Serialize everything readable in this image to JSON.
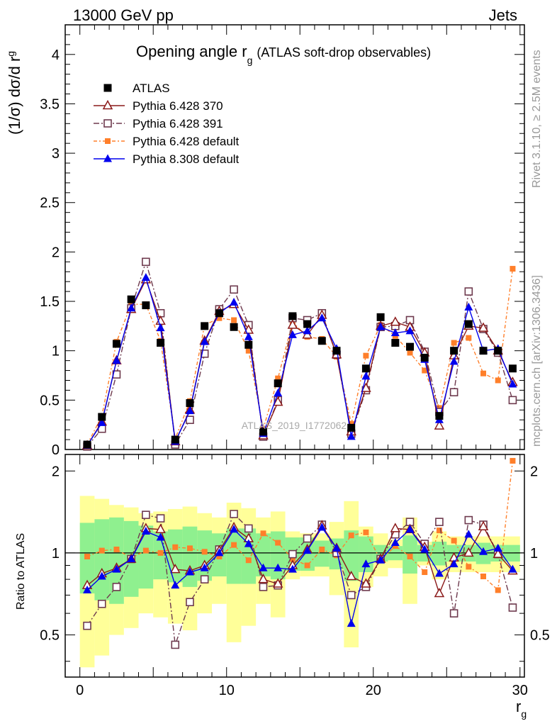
{
  "header": {
    "energy": "13000 GeV pp",
    "process": "Jets"
  },
  "side_labels": {
    "rivet": "Rivet 3.1.10, ≥ 2.5M events",
    "mcplots": "mcplots.cern.ch [arXiv:1306.3436]"
  },
  "watermark": "ATLAS_2019_I1772062",
  "colors": {
    "atlas": "#000000",
    "p370": "#8b1a1a",
    "p391": "#6e3a4e",
    "p6def": "#ff7f2a",
    "p8def": "#0000ee",
    "band_green": "#8ff08f",
    "band_yellow": "#ffff99"
  },
  "chart_data": [
    {
      "type": "line",
      "title": "Opening angle r",
      "title_sub": "g",
      "title_suffix": "(ATLAS soft-drop observables)",
      "ylabel": "(1/σ) dσ/d r",
      "ylabel_sub": "g",
      "ylim": [
        0,
        4.3
      ],
      "xlim": [
        -1,
        30.3
      ],
      "yticks": [
        0,
        0.5,
        1,
        1.5,
        2,
        2.5,
        3,
        3.5,
        4
      ],
      "ytick_labels": [
        "0",
        "0.5",
        "1",
        "1.5",
        "2",
        "2.5",
        "3",
        "3.5",
        "4"
      ],
      "legend_position": "top-left",
      "x": [
        0.5,
        1.5,
        2.5,
        3.5,
        4.5,
        5.5,
        6.5,
        7.5,
        8.5,
        9.5,
        10.5,
        11.5,
        12.5,
        13.5,
        14.5,
        15.5,
        16.5,
        17.5,
        18.5,
        19.5,
        20.5,
        21.5,
        22.5,
        23.5,
        24.5,
        25.5,
        26.5,
        27.5,
        28.5,
        29.5
      ],
      "series": [
        {
          "name": "ATLAS",
          "key": "atlas",
          "values": [
            0.05,
            0.33,
            1.07,
            1.52,
            1.46,
            1.08,
            0.1,
            0.47,
            1.25,
            1.38,
            1.24,
            1.06,
            0.18,
            0.67,
            1.35,
            1.27,
            1.1,
            1.0,
            0.22,
            0.82,
            1.34,
            1.08,
            1.04,
            0.93,
            0.34,
            1.0,
            1.27,
            1.0,
            1.0,
            0.82
          ]
        },
        {
          "name": "Pythia 6.428 370",
          "key": "p370",
          "values": [
            0.04,
            0.28,
            0.9,
            1.42,
            1.72,
            1.3,
            0.08,
            0.4,
            1.1,
            1.4,
            1.47,
            1.21,
            0.14,
            0.48,
            1.26,
            1.16,
            1.36,
            0.96,
            0.18,
            0.62,
            1.25,
            1.29,
            1.24,
            0.98,
            0.24,
            0.95,
            1.25,
            1.23,
            1.0,
            0.68
          ]
        },
        {
          "name": "Pythia 6.428 391",
          "key": "p391",
          "values": [
            0.03,
            0.21,
            0.76,
            1.43,
            1.9,
            1.38,
            0.05,
            0.3,
            0.97,
            1.42,
            1.62,
            1.26,
            0.13,
            0.5,
            1.33,
            1.31,
            1.38,
            0.96,
            0.16,
            0.6,
            1.24,
            1.25,
            1.31,
            0.99,
            0.38,
            0.58,
            1.6,
            1.22,
            0.98,
            0.5
          ]
        },
        {
          "name": "Pythia 6.428 default",
          "key": "p6def",
          "values": [
            0.05,
            0.34,
            1.09,
            1.47,
            1.47,
            1.1,
            0.11,
            0.49,
            1.26,
            1.33,
            1.31,
            1.0,
            0.21,
            0.72,
            1.29,
            1.14,
            1.12,
            0.94,
            0.26,
            0.95,
            1.26,
            1.15,
            0.98,
            0.8,
            0.42,
            1.08,
            1.13,
            0.77,
            0.7,
            1.83
          ]
        },
        {
          "name": "Pythia 8.308 default",
          "key": "p8def",
          "values": [
            0.04,
            0.27,
            0.9,
            1.43,
            1.74,
            1.23,
            0.08,
            0.39,
            1.09,
            1.38,
            1.49,
            1.14,
            0.16,
            0.57,
            1.16,
            1.2,
            1.33,
            1.02,
            0.13,
            0.74,
            1.24,
            1.18,
            1.2,
            0.91,
            0.3,
            0.89,
            1.44,
            1.0,
            1.02,
            0.66
          ]
        }
      ]
    },
    {
      "type": "line",
      "ylabel": "Ratio to ATLAS",
      "xlabel": "r",
      "xlabel_sub": "g",
      "ylim": [
        0.35,
        2.3
      ],
      "xticks": [
        0,
        10,
        20,
        30
      ],
      "xtick_labels": [
        "0",
        "10",
        "20",
        "30"
      ],
      "yticks": [
        0.5,
        1,
        2
      ],
      "ytick_labels": [
        "0.5",
        "1",
        "2"
      ],
      "band_green_halfwidth": [
        0.29,
        0.33,
        0.35,
        0.31,
        0.26,
        0.2,
        0.22,
        0.25,
        0.21,
        0.18,
        0.23,
        0.23,
        0.18,
        0.2,
        0.14,
        0.14,
        0.11,
        0.13,
        0.21,
        0.15,
        0.07,
        0.06,
        0.16,
        0.07,
        0.1,
        0.07,
        0.07,
        0.09,
        0.07,
        0.07
      ],
      "band_yellow_halfwidth": [
        0.62,
        0.58,
        0.5,
        0.47,
        0.4,
        0.42,
        0.45,
        0.48,
        0.4,
        0.35,
        0.53,
        0.46,
        0.35,
        0.42,
        0.2,
        0.18,
        0.18,
        0.3,
        0.55,
        0.25,
        0.18,
        0.12,
        0.35,
        0.1,
        0.2,
        0.15,
        0.15,
        0.15,
        0.15,
        0.15
      ],
      "series": [
        {
          "name": "Pythia 6.428 370",
          "key": "p370",
          "values": [
            0.76,
            0.84,
            0.88,
            0.95,
            1.23,
            1.22,
            0.87,
            0.86,
            0.9,
            1.02,
            1.24,
            1.13,
            0.8,
            0.77,
            0.9,
            1.03,
            1.26,
            1.04,
            0.82,
            0.77,
            0.95,
            1.23,
            1.22,
            1.05,
            0.71,
            0.96,
            1.0,
            1.25,
            0.99,
            0.86
          ]
        },
        {
          "name": "Pythia 6.428 391",
          "key": "p391",
          "values": [
            0.54,
            0.65,
            0.75,
            0.95,
            1.38,
            1.34,
            0.46,
            0.66,
            0.8,
            1.03,
            1.39,
            1.23,
            0.75,
            0.76,
            0.99,
            1.13,
            1.27,
            1.0,
            0.7,
            0.75,
            0.95,
            1.17,
            1.3,
            1.08,
            1.3,
            0.6,
            1.32,
            1.27,
            0.99,
            0.63
          ]
        },
        {
          "name": "Pythia 6.428 default",
          "key": "p6def",
          "values": [
            0.97,
            1.02,
            1.03,
            0.96,
            1.02,
            1.0,
            1.05,
            1.04,
            1.01,
            0.97,
            1.07,
            0.94,
            1.18,
            1.09,
            0.95,
            0.9,
            1.03,
            0.98,
            1.16,
            1.19,
            0.94,
            1.06,
            0.97,
            0.85,
            1.21,
            1.11,
            0.89,
            0.82,
            0.73,
            2.18
          ]
        },
        {
          "name": "Pythia 8.308 default",
          "key": "p8def",
          "values": [
            0.73,
            0.82,
            0.87,
            0.95,
            1.2,
            1.14,
            0.76,
            0.85,
            0.88,
            1.0,
            1.22,
            1.08,
            0.88,
            0.88,
            0.87,
            1.02,
            1.24,
            1.04,
            0.55,
            0.91,
            0.94,
            1.09,
            1.22,
            1.03,
            0.84,
            0.91,
            1.17,
            1.01,
            1.04,
            0.87
          ]
        }
      ]
    }
  ]
}
